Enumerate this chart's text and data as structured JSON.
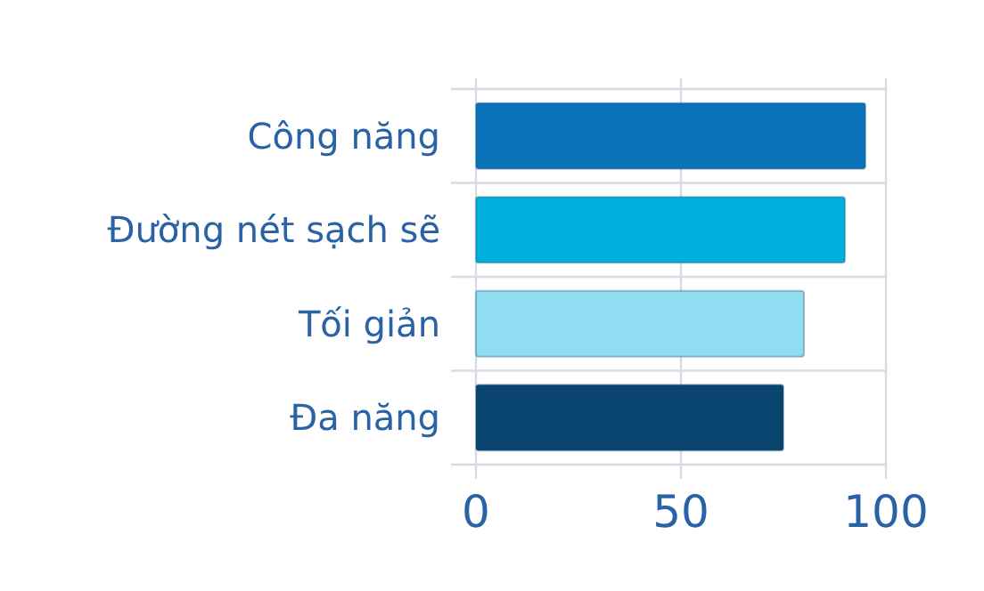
{
  "chart_data": {
    "type": "bar",
    "orientation": "horizontal",
    "categories": [
      "Công năng",
      "Đường nét sạch sẽ",
      "Tối giản",
      "Đa năng"
    ],
    "values": [
      95,
      90,
      80,
      75
    ],
    "colors": [
      "#0a72b8",
      "#00b0dc",
      "#90dcf0",
      "#0a4570"
    ],
    "xlim": [
      0,
      100
    ],
    "xticks": [
      0,
      50,
      100
    ],
    "grid": true
  }
}
